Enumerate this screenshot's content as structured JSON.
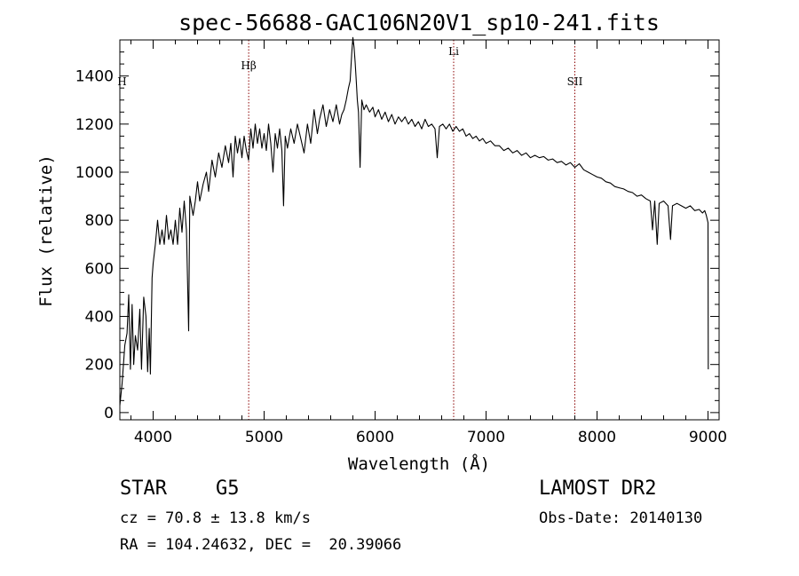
{
  "chart_data": {
    "type": "line",
    "title": "spec-56688-GAC106N20V1_sp10-241.fits",
    "xlabel": "Wavelength (Å)",
    "ylabel": "Flux (relative)",
    "xlim": [
      3700,
      9100
    ],
    "ylim": [
      -30,
      1550
    ],
    "x_ticks": [
      4000,
      5000,
      6000,
      7000,
      8000,
      9000
    ],
    "x_tick_labels": [
      "4000",
      "5000",
      "6000",
      "7000",
      "8000",
      "9000"
    ],
    "y_ticks": [
      0,
      200,
      400,
      600,
      800,
      1000,
      1200,
      1400
    ],
    "y_tick_labels": [
      "0",
      "200",
      "400",
      "600",
      "800",
      "1000",
      "1200",
      "1400"
    ],
    "series": [
      {
        "name": "flux",
        "points": [
          [
            3700,
            30
          ],
          [
            3720,
            120
          ],
          [
            3745,
            280
          ],
          [
            3765,
            330
          ],
          [
            3780,
            490
          ],
          [
            3795,
            180
          ],
          [
            3810,
            450
          ],
          [
            3825,
            200
          ],
          [
            3840,
            320
          ],
          [
            3860,
            260
          ],
          [
            3880,
            430
          ],
          [
            3895,
            180
          ],
          [
            3915,
            480
          ],
          [
            3935,
            400
          ],
          [
            3950,
            170
          ],
          [
            3965,
            350
          ],
          [
            3975,
            160
          ],
          [
            3990,
            560
          ],
          [
            4000,
            620
          ],
          [
            4020,
            700
          ],
          [
            4040,
            800
          ],
          [
            4060,
            700
          ],
          [
            4080,
            760
          ],
          [
            4100,
            700
          ],
          [
            4120,
            820
          ],
          [
            4140,
            720
          ],
          [
            4160,
            760
          ],
          [
            4180,
            700
          ],
          [
            4200,
            800
          ],
          [
            4220,
            700
          ],
          [
            4240,
            850
          ],
          [
            4260,
            750
          ],
          [
            4280,
            880
          ],
          [
            4300,
            760
          ],
          [
            4320,
            340
          ],
          [
            4330,
            900
          ],
          [
            4360,
            820
          ],
          [
            4380,
            880
          ],
          [
            4400,
            960
          ],
          [
            4420,
            880
          ],
          [
            4450,
            950
          ],
          [
            4480,
            1000
          ],
          [
            4500,
            920
          ],
          [
            4530,
            1050
          ],
          [
            4560,
            980
          ],
          [
            4590,
            1080
          ],
          [
            4620,
            1020
          ],
          [
            4650,
            1110
          ],
          [
            4680,
            1040
          ],
          [
            4700,
            1120
          ],
          [
            4720,
            980
          ],
          [
            4740,
            1150
          ],
          [
            4760,
            1080
          ],
          [
            4780,
            1140
          ],
          [
            4800,
            1060
          ],
          [
            4820,
            1150
          ],
          [
            4840,
            1090
          ],
          [
            4860,
            1050
          ],
          [
            4880,
            1180
          ],
          [
            4900,
            1100
          ],
          [
            4920,
            1200
          ],
          [
            4940,
            1120
          ],
          [
            4960,
            1180
          ],
          [
            4980,
            1100
          ],
          [
            5000,
            1160
          ],
          [
            5020,
            1090
          ],
          [
            5040,
            1200
          ],
          [
            5060,
            1120
          ],
          [
            5080,
            1000
          ],
          [
            5100,
            1160
          ],
          [
            5120,
            1100
          ],
          [
            5140,
            1180
          ],
          [
            5160,
            1090
          ],
          [
            5175,
            860
          ],
          [
            5190,
            1150
          ],
          [
            5210,
            1100
          ],
          [
            5240,
            1180
          ],
          [
            5270,
            1120
          ],
          [
            5300,
            1200
          ],
          [
            5330,
            1140
          ],
          [
            5360,
            1080
          ],
          [
            5390,
            1200
          ],
          [
            5420,
            1120
          ],
          [
            5450,
            1260
          ],
          [
            5480,
            1160
          ],
          [
            5500,
            1220
          ],
          [
            5530,
            1280
          ],
          [
            5560,
            1190
          ],
          [
            5590,
            1260
          ],
          [
            5620,
            1210
          ],
          [
            5650,
            1280
          ],
          [
            5680,
            1200
          ],
          [
            5700,
            1240
          ],
          [
            5720,
            1260
          ],
          [
            5740,
            1300
          ],
          [
            5760,
            1350
          ],
          [
            5775,
            1380
          ],
          [
            5790,
            1500
          ],
          [
            5800,
            1560
          ],
          [
            5810,
            1520
          ],
          [
            5820,
            1460
          ],
          [
            5830,
            1380
          ],
          [
            5840,
            1300
          ],
          [
            5850,
            1250
          ],
          [
            5865,
            1020
          ],
          [
            5880,
            1300
          ],
          [
            5900,
            1260
          ],
          [
            5920,
            1280
          ],
          [
            5950,
            1250
          ],
          [
            5980,
            1270
          ],
          [
            6000,
            1230
          ],
          [
            6030,
            1260
          ],
          [
            6060,
            1220
          ],
          [
            6090,
            1250
          ],
          [
            6120,
            1210
          ],
          [
            6150,
            1240
          ],
          [
            6180,
            1200
          ],
          [
            6210,
            1230
          ],
          [
            6240,
            1210
          ],
          [
            6270,
            1230
          ],
          [
            6300,
            1200
          ],
          [
            6330,
            1220
          ],
          [
            6360,
            1190
          ],
          [
            6390,
            1210
          ],
          [
            6420,
            1180
          ],
          [
            6450,
            1220
          ],
          [
            6480,
            1190
          ],
          [
            6510,
            1200
          ],
          [
            6540,
            1180
          ],
          [
            6560,
            1060
          ],
          [
            6580,
            1190
          ],
          [
            6610,
            1200
          ],
          [
            6640,
            1180
          ],
          [
            6670,
            1200
          ],
          [
            6700,
            1170
          ],
          [
            6730,
            1190
          ],
          [
            6760,
            1170
          ],
          [
            6790,
            1180
          ],
          [
            6820,
            1150
          ],
          [
            6850,
            1160
          ],
          [
            6880,
            1140
          ],
          [
            6910,
            1150
          ],
          [
            6940,
            1130
          ],
          [
            6970,
            1140
          ],
          [
            7000,
            1120
          ],
          [
            7040,
            1130
          ],
          [
            7080,
            1110
          ],
          [
            7120,
            1110
          ],
          [
            7160,
            1090
          ],
          [
            7200,
            1100
          ],
          [
            7240,
            1080
          ],
          [
            7280,
            1090
          ],
          [
            7320,
            1070
          ],
          [
            7360,
            1080
          ],
          [
            7400,
            1060
          ],
          [
            7440,
            1070
          ],
          [
            7480,
            1060
          ],
          [
            7520,
            1065
          ],
          [
            7560,
            1050
          ],
          [
            7600,
            1055
          ],
          [
            7640,
            1040
          ],
          [
            7680,
            1045
          ],
          [
            7720,
            1030
          ],
          [
            7760,
            1040
          ],
          [
            7800,
            1020
          ],
          [
            7840,
            1035
          ],
          [
            7880,
            1010
          ],
          [
            7920,
            1000
          ],
          [
            7960,
            990
          ],
          [
            8000,
            980
          ],
          [
            8040,
            975
          ],
          [
            8080,
            960
          ],
          [
            8120,
            955
          ],
          [
            8160,
            940
          ],
          [
            8200,
            935
          ],
          [
            8240,
            930
          ],
          [
            8280,
            920
          ],
          [
            8320,
            915
          ],
          [
            8360,
            900
          ],
          [
            8400,
            905
          ],
          [
            8440,
            890
          ],
          [
            8480,
            880
          ],
          [
            8500,
            760
          ],
          [
            8520,
            880
          ],
          [
            8542,
            700
          ],
          [
            8560,
            870
          ],
          [
            8600,
            880
          ],
          [
            8640,
            860
          ],
          [
            8662,
            720
          ],
          [
            8680,
            860
          ],
          [
            8720,
            870
          ],
          [
            8760,
            860
          ],
          [
            8800,
            850
          ],
          [
            8840,
            860
          ],
          [
            8880,
            840
          ],
          [
            8920,
            845
          ],
          [
            8950,
            830
          ],
          [
            8970,
            840
          ],
          [
            8985,
            820
          ],
          [
            9000,
            790
          ],
          [
            9002,
            180
          ]
        ]
      }
    ],
    "annotations": [
      {
        "label": "H",
        "x": 3720
      },
      {
        "label": "Hβ",
        "x": 4861
      },
      {
        "label": "Li",
        "x": 6708
      },
      {
        "label": "SII",
        "x": 7800
      }
    ],
    "line_color": "#000000",
    "marker_color": "#8b0000"
  },
  "info": {
    "class_label": "STAR",
    "subclass_label": "G5",
    "survey": "LAMOST DR2",
    "velocity": "cz = 70.8 ± 13.8 km/s",
    "obs_date": "Obs-Date: 20140130",
    "coords": "RA = 104.24632, DEC =  20.39066"
  }
}
